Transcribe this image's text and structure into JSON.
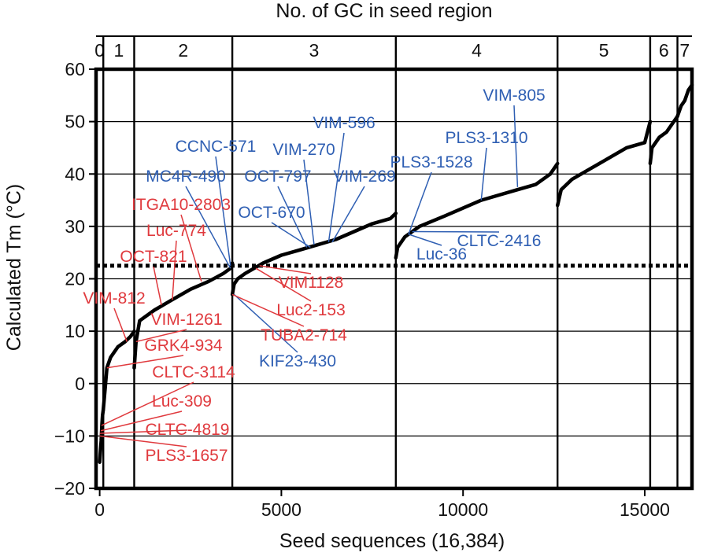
{
  "chart_data": {
    "type": "line",
    "title": "",
    "xlabel": "Seed sequences (16,384)",
    "ylabel": "Calculated Tm (°C)",
    "top_axis_label": "No. of GC in seed region",
    "xlim": [
      -100,
      16300
    ],
    "ylim": [
      -20,
      60
    ],
    "x_ticks": [
      0,
      5000,
      10000,
      15000
    ],
    "x_tick_labels": [
      "0",
      "5000",
      "10000",
      "15000"
    ],
    "y_ticks": [
      -20,
      -10,
      0,
      10,
      20,
      30,
      40,
      50,
      60
    ],
    "y_tick_labels": [
      "−20",
      "−10",
      "0",
      "10",
      "20",
      "30",
      "40",
      "50",
      "60"
    ],
    "grid": true,
    "threshold_line": {
      "y": 22.5,
      "style": "dotted"
    },
    "gc_groups": [
      {
        "label": "0",
        "x_start": -100,
        "x_end": 100
      },
      {
        "label": "1",
        "x_start": 100,
        "x_end": 950
      },
      {
        "label": "2",
        "x_start": 950,
        "x_end": 3650
      },
      {
        "label": "3",
        "x_start": 3650,
        "x_end": 8150
      },
      {
        "label": "4",
        "x_start": 8150,
        "x_end": 12600
      },
      {
        "label": "5",
        "x_start": 12600,
        "x_end": 15150
      },
      {
        "label": "6",
        "x_start": 15150,
        "x_end": 15900
      },
      {
        "label": "7",
        "x_start": 15900,
        "x_end": 16300
      }
    ],
    "series": [
      {
        "color": "#000000",
        "segments": [
          {
            "x": [
              0,
              20,
              40,
              60,
              80,
              100
            ],
            "y": [
              -15,
              -13,
              -11,
              -8,
              -6,
              -5
            ]
          },
          {
            "x": [
              100,
              200,
              300,
              500,
              700,
              850,
              950
            ],
            "y": [
              -5,
              3,
              5,
              7,
              8,
              9,
              10
            ]
          },
          {
            "x": [
              950,
              1000,
              1100,
              1500,
              2000,
              2500,
              3000,
              3400,
              3600,
              3650
            ],
            "y": [
              3,
              8,
              12,
              14,
              16,
              18,
              19.5,
              21,
              22,
              23
            ]
          },
          {
            "x": [
              3650,
              3700,
              3800,
              4000,
              4500,
              5000,
              5500,
              6000,
              6500,
              7000,
              7500,
              8000,
              8150
            ],
            "y": [
              17,
              19,
              20,
              21,
              23,
              24.5,
              25.5,
              26.5,
              27.5,
              29,
              30.5,
              31.5,
              32.5
            ]
          },
          {
            "x": [
              8150,
              8200,
              8400,
              8800,
              9500,
              10000,
              10500,
              11000,
              11500,
              12000,
              12400,
              12600
            ],
            "y": [
              24,
              26,
              28,
              30,
              32,
              33.5,
              35,
              36,
              37,
              38,
              40,
              42
            ]
          },
          {
            "x": [
              12600,
              12700,
              13000,
              13500,
              14000,
              14500,
              15000,
              15150
            ],
            "y": [
              34,
              37,
              39,
              41,
              43,
              45,
              46,
              50
            ]
          },
          {
            "x": [
              15150,
              15200,
              15400,
              15600,
              15800,
              15900
            ],
            "y": [
              42,
              45,
              47,
              48,
              50,
              51
            ]
          },
          {
            "x": [
              15900,
              16000,
              16100,
              16200,
              16300
            ],
            "y": [
              51,
              53,
              54,
              56,
              57
            ]
          }
        ]
      }
    ],
    "annotations": [
      {
        "text": "VIM-805",
        "color": "#2f5fb3",
        "x": 11500,
        "y": 37.5
      },
      {
        "text": "PLS3-1310",
        "color": "#2f5fb3",
        "x": 10500,
        "y": 35
      },
      {
        "text": "PLS3-1528",
        "color": "#2f5fb3",
        "x": 8500,
        "y": 28.5
      },
      {
        "text": "VIM-596",
        "color": "#2f5fb3",
        "x": 6300,
        "y": 27
      },
      {
        "text": "CCNC-571",
        "color": "#2f5fb3",
        "x": 3600,
        "y": 22.5
      },
      {
        "text": "VIM-270",
        "color": "#2f5fb3",
        "x": 5900,
        "y": 26.5
      },
      {
        "text": "MC4R-490",
        "color": "#2f5fb3",
        "x": 3600,
        "y": 22
      },
      {
        "text": "OCT-797",
        "color": "#2f5fb3",
        "x": 5700,
        "y": 26
      },
      {
        "text": "VIM-269",
        "color": "#2f5fb3",
        "x": 6400,
        "y": 27
      },
      {
        "text": "OCT-670",
        "color": "#2f5fb3",
        "x": 5800,
        "y": 26
      },
      {
        "text": "CLTC-2416",
        "color": "#2f5fb3",
        "x": 8600,
        "y": 29
      },
      {
        "text": "Luc-36",
        "color": "#2f5fb3",
        "x": 8500,
        "y": 28.5
      },
      {
        "text": "KIF23-430",
        "color": "#2f5fb3",
        "x": 3700,
        "y": 17
      },
      {
        "text": "ITGA10-2803",
        "color": "#e03a3e",
        "x": 2800,
        "y": 19.5
      },
      {
        "text": "Luc-774",
        "color": "#e03a3e",
        "x": 2000,
        "y": 16
      },
      {
        "text": "OCT-821",
        "color": "#e03a3e",
        "x": 1700,
        "y": 15
      },
      {
        "text": "VIM1128",
        "color": "#e03a3e",
        "x": 4400,
        "y": 22.5
      },
      {
        "text": "VIM-812",
        "color": "#e03a3e",
        "x": 750,
        "y": 8
      },
      {
        "text": "Luc2-153",
        "color": "#e03a3e",
        "x": 4300,
        "y": 22
      },
      {
        "text": "VIM-1261",
        "color": "#e03a3e",
        "x": 1000,
        "y": 8
      },
      {
        "text": "TUBA2-714",
        "color": "#e03a3e",
        "x": 3650,
        "y": 17
      },
      {
        "text": "GRK4-934",
        "color": "#e03a3e",
        "x": 200,
        "y": 3
      },
      {
        "text": "CLTC-3114",
        "color": "#e03a3e",
        "x": 50,
        "y": -8
      },
      {
        "text": "Luc-309",
        "color": "#e03a3e",
        "x": 30,
        "y": -9
      },
      {
        "text": "CLTC-4819",
        "color": "#e03a3e",
        "x": 0,
        "y": -9.5
      },
      {
        "text": "PLS3-1657",
        "color": "#e03a3e",
        "x": 0,
        "y": -10
      }
    ]
  }
}
